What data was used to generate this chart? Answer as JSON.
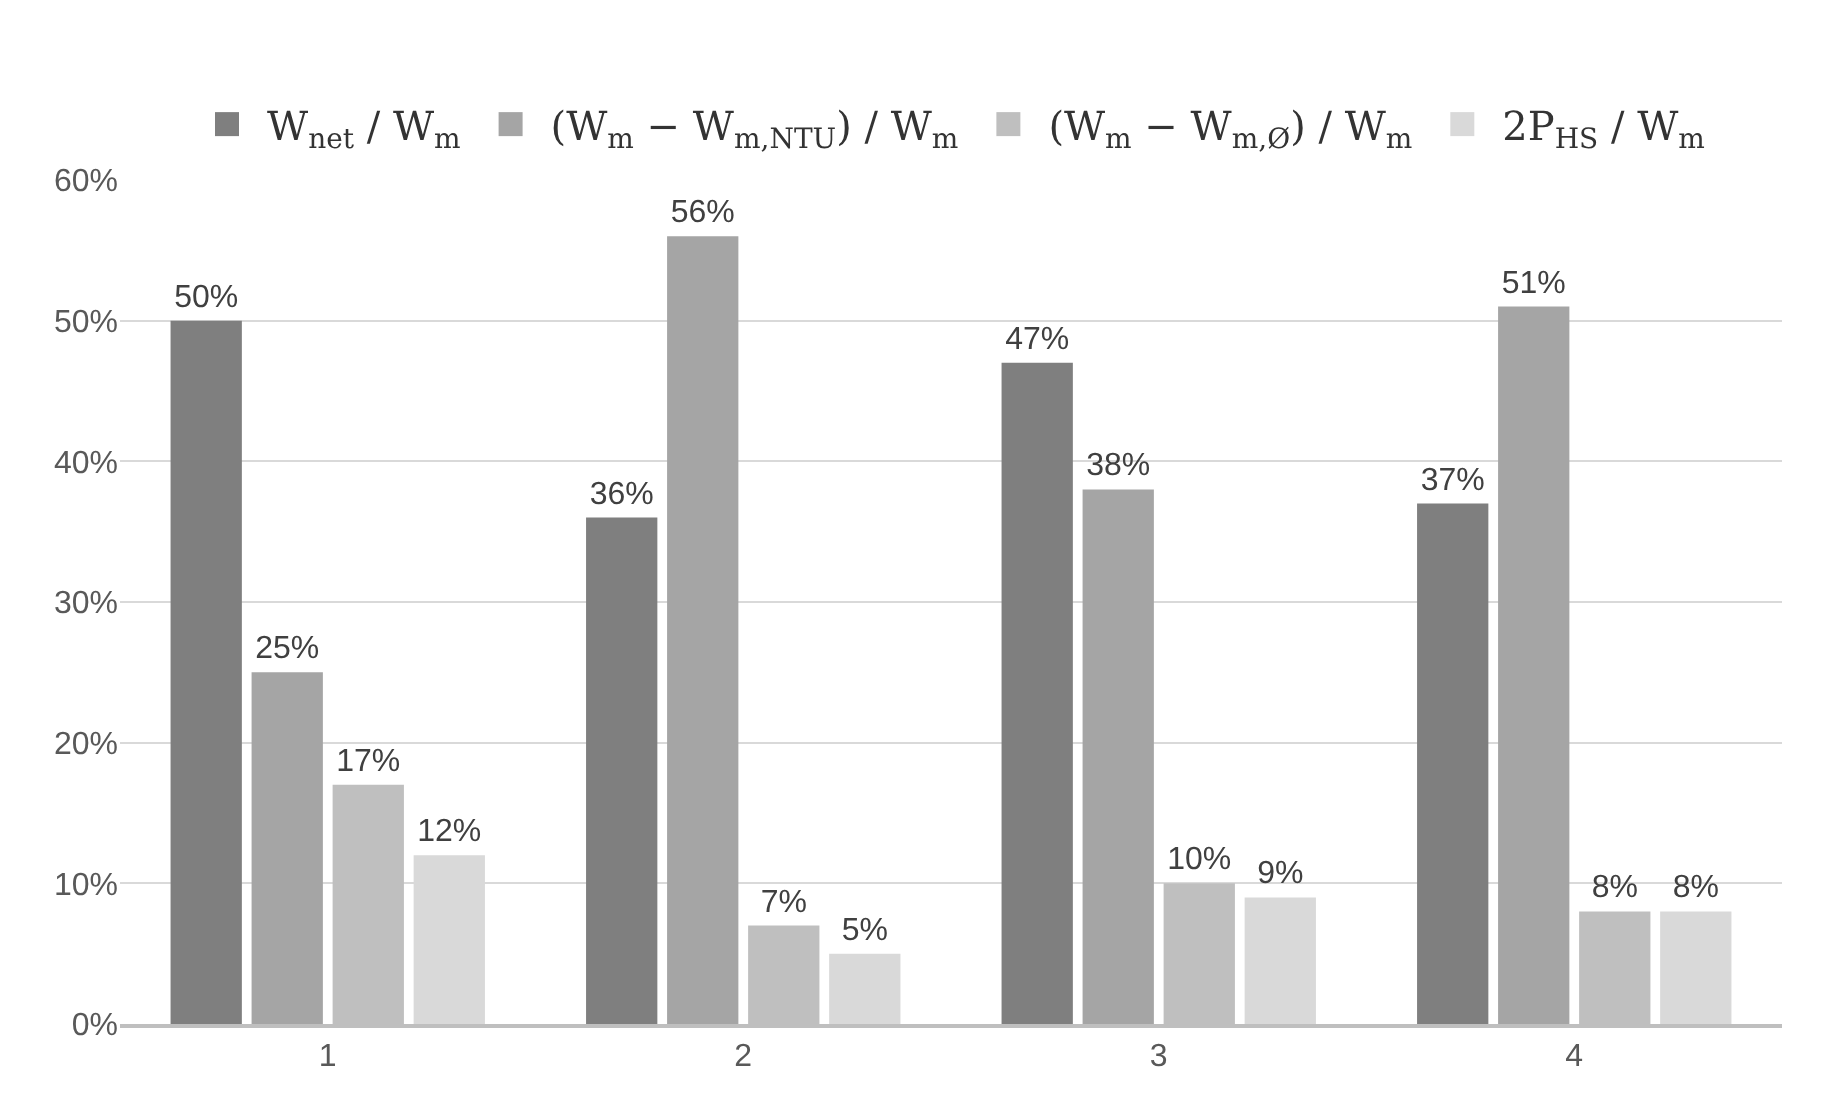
{
  "chart_data": {
    "type": "bar",
    "categories": [
      "1",
      "2",
      "3",
      "4"
    ],
    "series": [
      {
        "name": "W$_{net}$ / W$_{m}$",
        "color": "#7f7f7f",
        "values": [
          50,
          36,
          47,
          37
        ],
        "value_labels": [
          "50%",
          "36%",
          "47%",
          "37%"
        ]
      },
      {
        "name": "(W$_{m}$ − W$_{m,NTU}$) / W$_{m}$",
        "color": "#a5a5a5",
        "values": [
          25,
          56,
          38,
          51
        ],
        "value_labels": [
          "25%",
          "56%",
          "38%",
          "51%"
        ]
      },
      {
        "name": "(W$_{m}$ − W$_{m,Ø}$) / W$_{m}$",
        "color": "#bfbfbf",
        "values": [
          17,
          7,
          10,
          8
        ],
        "value_labels": [
          "17%",
          "7%",
          "10%",
          "8%"
        ]
      },
      {
        "name": "2P$_{HS}$ / W$_{m}$",
        "color": "#d9d9d9",
        "values": [
          12,
          5,
          9,
          8
        ],
        "value_labels": [
          "12%",
          "5%",
          "9%",
          "8%"
        ]
      }
    ],
    "ylim": [
      0,
      60
    ],
    "yticks": [
      {
        "value": 0,
        "label": "0%"
      },
      {
        "value": 10,
        "label": "10%"
      },
      {
        "value": 20,
        "label": "20%"
      },
      {
        "value": 30,
        "label": "30%"
      },
      {
        "value": 40,
        "label": "40%"
      },
      {
        "value": 50,
        "label": "50%"
      },
      {
        "value": 60,
        "label": "60%"
      }
    ],
    "grid": "y",
    "legend": "top"
  }
}
